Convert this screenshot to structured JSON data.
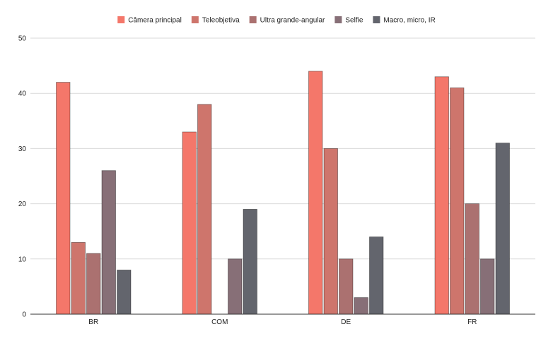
{
  "chart_data": {
    "type": "bar",
    "title": "",
    "xlabel": "",
    "ylabel": "",
    "categories": [
      "BR",
      "COM",
      "DE",
      "FR"
    ],
    "ylim": [
      0,
      50
    ],
    "yticks": [
      0,
      10,
      20,
      30,
      40,
      50
    ],
    "grid": true,
    "legend_position": "top-center",
    "series": [
      {
        "name": "Câmera principal",
        "color": "#F4776A",
        "values": [
          42,
          33,
          44,
          43
        ]
      },
      {
        "name": "Teleobjetiva",
        "color": "#CE756C",
        "values": [
          13,
          38,
          30,
          41
        ]
      },
      {
        "name": "Ultra grande-angular",
        "color": "#AB7170",
        "values": [
          11,
          0,
          10,
          20
        ]
      },
      {
        "name": "Selfie",
        "color": "#876F77",
        "values": [
          26,
          10,
          3,
          10
        ]
      },
      {
        "name": "Macro, micro, IR",
        "color": "#63656D",
        "values": [
          8,
          19,
          14,
          31
        ]
      }
    ]
  }
}
